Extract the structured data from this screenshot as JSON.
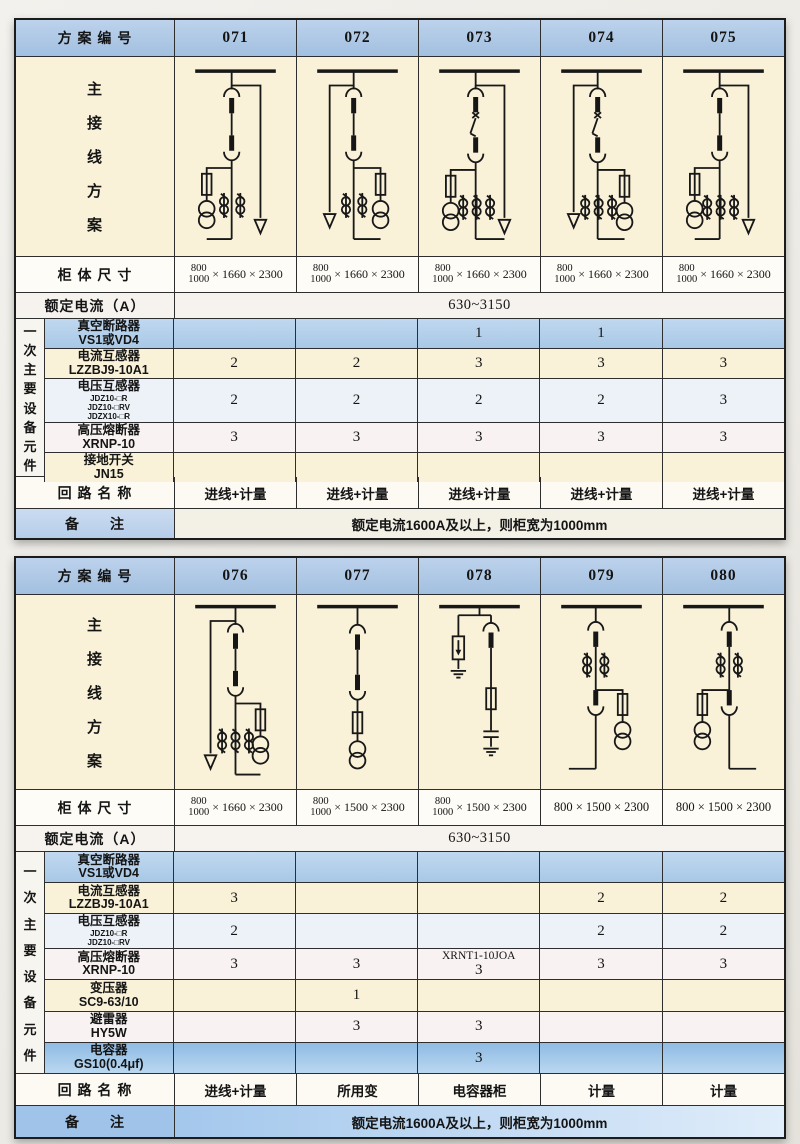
{
  "colors": {
    "header_blue": "#aac6e6",
    "equipment_row_blue": "#b5d2ec",
    "capacitor_row_blue": "#8fbbe4",
    "diagram_background_cream": "#f9f2d8",
    "remark_blue": "#a9caec",
    "table_border": "#1c1c1c"
  },
  "table1": {
    "header_label": "方 案 编 号",
    "schemes": [
      "071",
      "072",
      "073",
      "074",
      "075"
    ],
    "wiring_label": "主接线方案",
    "cabinet_label": "柜 体 尺 寸",
    "cabinet_dims": [
      {
        "frac_top": "800",
        "frac_bottom": "1000",
        "suffix": "× 1660 × 2300"
      },
      {
        "frac_top": "800",
        "frac_bottom": "1000",
        "suffix": "× 1660 × 2300"
      },
      {
        "frac_top": "800",
        "frac_bottom": "1000",
        "suffix": "× 1660 × 2300"
      },
      {
        "frac_top": "800",
        "frac_bottom": "1000",
        "suffix": "× 1660 × 2300"
      },
      {
        "frac_top": "800",
        "frac_bottom": "1000",
        "suffix": "× 1660 × 2300"
      }
    ],
    "current_label": "额定电流（A）",
    "current_value": "630~3150",
    "group_label": "一次主要设备元件",
    "equipment_rows": [
      {
        "style": "blue",
        "name_lines": [
          "真空断路器",
          "VS1或VD4"
        ],
        "values": [
          "",
          "",
          "1",
          "1",
          ""
        ]
      },
      {
        "style": "cream",
        "name_lines": [
          "电流互感器",
          "LZZBJ9-10A1"
        ],
        "values": [
          "2",
          "2",
          "3",
          "3",
          "3"
        ]
      },
      {
        "style": "lite",
        "name_lines": [
          "电压互感器"
        ],
        "small_lines": [
          "JDZ10-□R",
          "JDZ10-□RV",
          "JDZX10-□R"
        ],
        "values": [
          "2",
          "2",
          "2",
          "2",
          "3"
        ]
      },
      {
        "style": "pink",
        "name_lines": [
          "高压熔断器",
          "XRNP-10"
        ],
        "values": [
          "3",
          "3",
          "3",
          "3",
          "3"
        ]
      },
      {
        "style": "cream",
        "name_lines": [
          "接地开关",
          "JN15"
        ],
        "values": [
          "",
          "",
          "",
          "",
          ""
        ]
      }
    ],
    "circuit_label": "回 路 名 称",
    "circuit_names": [
      "进线+计量",
      "进线+计量",
      "进线+计量",
      "进线+计量",
      "进线+计量"
    ],
    "remark_label": "备　　注",
    "remark_text": "额定电流1600A及以上，则柜宽为1000mm"
  },
  "table2": {
    "header_label": "方 案 编 号",
    "schemes": [
      "076",
      "077",
      "078",
      "079",
      "080"
    ],
    "wiring_label": "主接线方案",
    "cabinet_label": "柜 体 尺 寸",
    "cabinet_dims": [
      {
        "frac_top": "800",
        "frac_bottom": "1000",
        "suffix": "× 1660 × 2300"
      },
      {
        "frac_top": "800",
        "frac_bottom": "1000",
        "suffix": "× 1500 × 2300"
      },
      {
        "frac_top": "800",
        "frac_bottom": "1000",
        "suffix": "× 1500 × 2300"
      },
      {
        "plain": "800 × 1500 × 2300"
      },
      {
        "plain": "800 × 1500 × 2300"
      }
    ],
    "current_label": "额定电流（A）",
    "current_value": "630~3150",
    "group_label": "一次主要设备元件",
    "equipment_rows": [
      {
        "style": "blue",
        "name_lines": [
          "真空断路器",
          "VS1或VD4"
        ],
        "values": [
          "",
          "",
          "",
          "",
          ""
        ]
      },
      {
        "style": "cream",
        "name_lines": [
          "电流互感器",
          "LZZBJ9-10A1"
        ],
        "values": [
          "3",
          "",
          "",
          "2",
          "2"
        ]
      },
      {
        "style": "lite",
        "name_lines": [
          "电压互感器"
        ],
        "small_lines": [
          "JDZ10-□R",
          "JDZ10-□RV"
        ],
        "values": [
          "2",
          "",
          "",
          "2",
          "2"
        ]
      },
      {
        "style": "pink",
        "name_lines": [
          "高压熔断器",
          "XRNP-10"
        ],
        "values": [
          "3",
          "3",
          "XRNT1-10JOA\n3",
          "3",
          "3"
        ]
      },
      {
        "style": "cream",
        "name_lines": [
          "变压器",
          "SC9-63/10"
        ],
        "values": [
          "",
          "1",
          "",
          "",
          ""
        ]
      },
      {
        "style": "pink",
        "name_lines": [
          "避雷器",
          "HY5W"
        ],
        "values": [
          "",
          "3",
          "3",
          "",
          ""
        ]
      },
      {
        "style": "capblue",
        "name_lines": [
          "电容器",
          "GS10(0.4μf)"
        ],
        "values": [
          "",
          "",
          "3",
          "",
          ""
        ]
      }
    ],
    "circuit_label": "回 路 名 称",
    "circuit_names": [
      "进线+计量",
      "所用变",
      "电容器柜",
      "计量",
      "计量"
    ],
    "remark_label": "备　　注",
    "remark_text": "额定电流1600A及以上，则柜宽为1000mm"
  }
}
